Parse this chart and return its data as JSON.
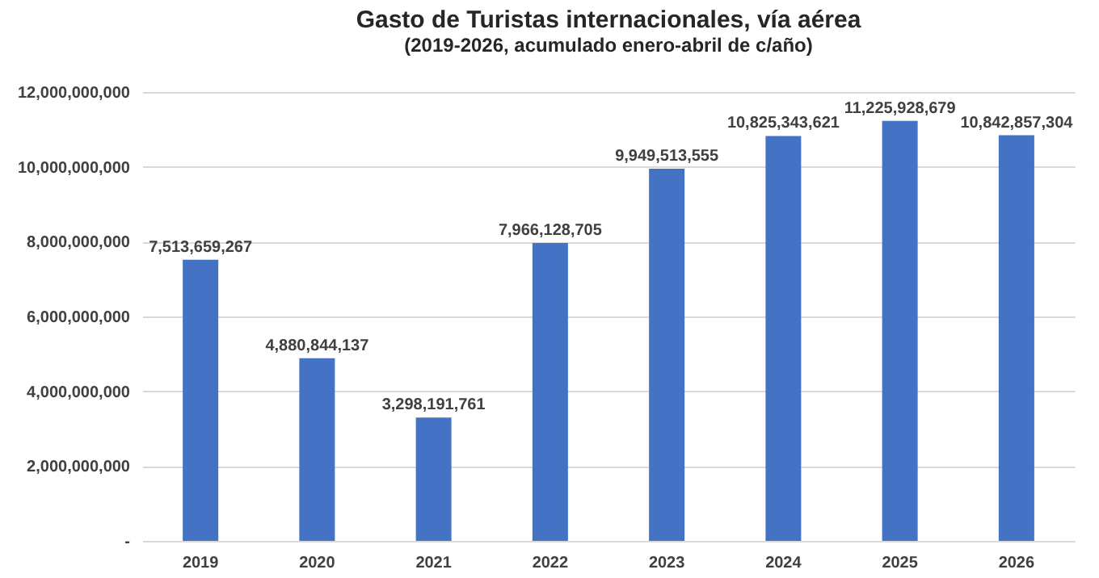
{
  "chart_data": {
    "type": "bar",
    "title": "Gasto de Turistas internacionales, vía aérea",
    "subtitle": "(2019-2026, acumulado enero-abril de c/año)",
    "categories": [
      "2019",
      "2020",
      "2021",
      "2022",
      "2023",
      "2024",
      "2025",
      "2026"
    ],
    "values": [
      7513659267,
      4880844137,
      3298191761,
      7966128705,
      9949513555,
      10825343621,
      11225928679,
      10842857304
    ],
    "color": "#4472c4",
    "ylim": [
      0,
      12000000000
    ],
    "yticks": [
      {
        "value": 0,
        "label": "-"
      },
      {
        "value": 2000000000,
        "label": "2,000,000,000"
      },
      {
        "value": 4000000000,
        "label": "4,000,000,000"
      },
      {
        "value": 6000000000,
        "label": "6,000,000,000"
      },
      {
        "value": 8000000000,
        "label": "8,000,000,000"
      },
      {
        "value": 10000000000,
        "label": "10,000,000,000"
      },
      {
        "value": 12000000000,
        "label": "12,000,000,000"
      }
    ],
    "value_labels": [
      "7,513,659,267",
      "4,880,844,137",
      "3,298,191,761",
      "7,966,128,705",
      "9,949,513,555",
      "10,825,343,621",
      "11,225,928,679",
      "10,842,857,304"
    ],
    "grid": "y"
  }
}
